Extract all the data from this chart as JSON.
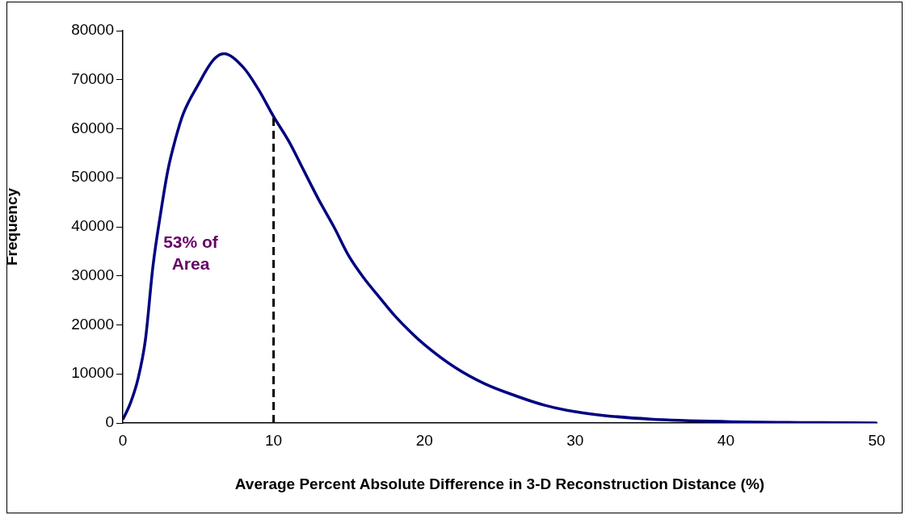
{
  "chart_data": {
    "type": "line",
    "xlabel": "Average Percent Absolute Difference in 3-D Reconstruction Distance (%)",
    "ylabel": "Frequency",
    "x": [
      0,
      0.5,
      1,
      1.5,
      2,
      2.5,
      3,
      3.5,
      4,
      5,
      6,
      6.7,
      8,
      9,
      10,
      11,
      12,
      13,
      14,
      15,
      16,
      17,
      18,
      19,
      20,
      22,
      24,
      26,
      28,
      30,
      32,
      35,
      40,
      45,
      50
    ],
    "series": [
      {
        "color": "#000080",
        "values": [
          700,
          4000,
          8900,
          17000,
          32000,
          42600,
          51700,
          58000,
          63000,
          69000,
          74000,
          75300,
          72500,
          68000,
          62500,
          57500,
          51500,
          45500,
          40000,
          34000,
          29500,
          25700,
          22000,
          18800,
          16000,
          11400,
          8000,
          5600,
          3600,
          2300,
          1500,
          800,
          300,
          100,
          0
        ]
      }
    ],
    "xlim": [
      0,
      50
    ],
    "xticks": [
      0,
      10,
      20,
      30,
      40,
      50
    ],
    "ylim": [
      0,
      80000
    ],
    "yticks": [
      0,
      10000,
      20000,
      30000,
      40000,
      50000,
      60000,
      70000,
      80000
    ],
    "grid": false,
    "legend": false,
    "marker": "none",
    "line_style": "solid",
    "ref_lines": [
      {
        "axis": "x",
        "value": 10,
        "color": "#000000",
        "line_style": "dashed"
      }
    ],
    "annotations": [
      "53% of Area"
    ]
  }
}
